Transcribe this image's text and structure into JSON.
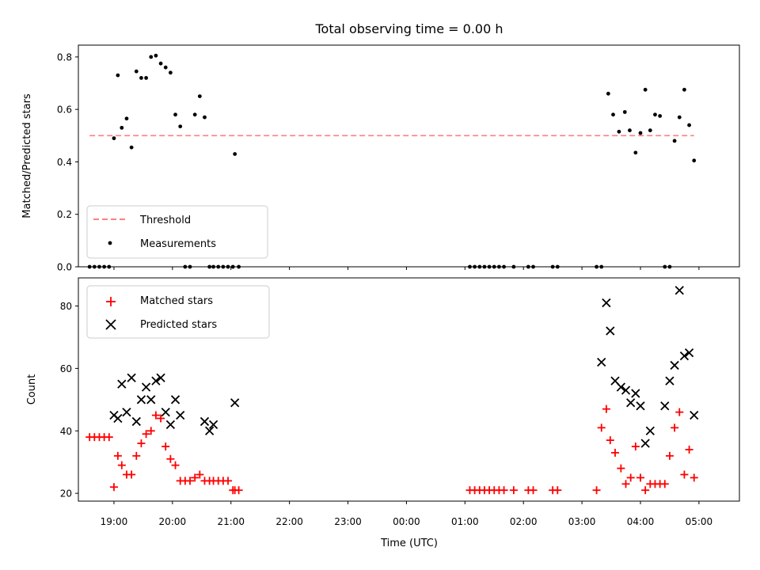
{
  "chart_data": [
    {
      "type": "scatter",
      "title": "Total observing time = 0.00 h",
      "xlabel": "",
      "ylabel": "Matched/Predicted stars",
      "ylim": [
        0,
        0.845
      ],
      "yticks": [
        "0.0",
        "0.2",
        "0.4",
        "0.6",
        "0.8"
      ],
      "ytick_values": [
        0,
        0.2,
        0.4,
        0.6,
        0.8
      ],
      "legend_position": "lower-left",
      "legend": [
        "Threshold",
        "Measurements"
      ],
      "threshold": {
        "name": "Threshold",
        "value": 0.5,
        "x_start": "18:35",
        "x_end": "04:55",
        "color": "#ff7f7f",
        "style": "dashed"
      },
      "series": [
        {
          "name": "Measurements",
          "marker": "dot",
          "color": "#000000",
          "x": [
            "18:35",
            "18:40",
            "18:45",
            "18:50",
            "18:55",
            "19:00",
            "19:04",
            "19:08",
            "19:13",
            "19:18",
            "19:23",
            "19:28",
            "19:33",
            "19:38",
            "19:43",
            "19:48",
            "19:53",
            "19:58",
            "20:03",
            "20:08",
            "20:13",
            "20:18",
            "20:23",
            "20:28",
            "20:33",
            "20:38",
            "20:42",
            "20:47",
            "20:52",
            "20:57",
            "21:02",
            "21:04",
            "21:08",
            "01:05",
            "01:10",
            "01:15",
            "01:20",
            "01:25",
            "01:30",
            "01:35",
            "01:40",
            "01:50",
            "02:05",
            "02:10",
            "02:30",
            "02:35",
            "03:15",
            "03:20",
            "03:27",
            "03:32",
            "03:38",
            "03:44",
            "03:49",
            "03:55",
            "04:00",
            "04:05",
            "04:10",
            "04:15",
            "04:20",
            "04:25",
            "04:30",
            "04:35",
            "04:40",
            "04:45",
            "04:50",
            "04:55"
          ],
          "y": [
            0,
            0,
            0,
            0,
            0,
            0.49,
            0.73,
            0.53,
            0.565,
            0.455,
            0.745,
            0.72,
            0.72,
            0.8,
            0.805,
            0.775,
            0.76,
            0.74,
            0.58,
            0.535,
            0,
            0,
            0.58,
            0.65,
            0.57,
            0,
            0,
            0,
            0,
            0,
            0,
            0.43,
            0,
            0,
            0,
            0,
            0,
            0,
            0,
            0,
            0,
            0,
            0,
            0,
            0,
            0,
            0,
            0,
            0.66,
            0.58,
            0.515,
            0.59,
            0.52,
            0.435,
            0.51,
            0.675,
            0.52,
            0.58,
            0.575,
            0,
            0,
            0.48,
            0.57,
            0.675,
            0.54,
            0.405
          ]
        }
      ]
    },
    {
      "type": "scatter",
      "title": "",
      "xlabel": "Time (UTC)",
      "ylabel": "Count",
      "ylim": [
        17.5,
        89
      ],
      "yticks": [
        "20",
        "40",
        "60",
        "80"
      ],
      "ytick_values": [
        20,
        40,
        60,
        80
      ],
      "xticks": [
        "19:00",
        "20:00",
        "21:00",
        "22:00",
        "23:00",
        "00:00",
        "01:00",
        "02:00",
        "03:00",
        "04:00",
        "05:00"
      ],
      "legend_position": "upper-left",
      "legend": [
        "Matched stars",
        "Predicted stars"
      ],
      "series": [
        {
          "name": "Matched stars",
          "marker": "plus",
          "color": "#ff0000",
          "x": [
            "18:35",
            "18:40",
            "18:45",
            "18:50",
            "18:55",
            "19:00",
            "19:04",
            "19:08",
            "19:13",
            "19:18",
            "19:23",
            "19:28",
            "19:33",
            "19:38",
            "19:43",
            "19:48",
            "19:53",
            "19:58",
            "20:03",
            "20:08",
            "20:13",
            "20:18",
            "20:23",
            "20:28",
            "20:33",
            "20:38",
            "20:42",
            "20:47",
            "20:52",
            "20:57",
            "21:02",
            "21:04",
            "21:08",
            "01:05",
            "01:10",
            "01:15",
            "01:20",
            "01:25",
            "01:30",
            "01:35",
            "01:40",
            "01:50",
            "02:05",
            "02:10",
            "02:30",
            "02:35",
            "03:15",
            "03:20",
            "03:25",
            "03:29",
            "03:34",
            "03:40",
            "03:45",
            "03:50",
            "03:55",
            "04:00",
            "04:05",
            "04:10",
            "04:15",
            "04:20",
            "04:25",
            "04:30",
            "04:35",
            "04:40",
            "04:45",
            "04:50",
            "04:55"
          ],
          "y": [
            38,
            38,
            38,
            38,
            38,
            22,
            32,
            29,
            26,
            26,
            32,
            36,
            39,
            40,
            45,
            44,
            35,
            31,
            29,
            24,
            24,
            24,
            25,
            26,
            24,
            24,
            24,
            24,
            24,
            24,
            21,
            21,
            21,
            21,
            21,
            21,
            21,
            21,
            21,
            21,
            21,
            21,
            21,
            21,
            21,
            21,
            21,
            41,
            47,
            37,
            33,
            28,
            23,
            25,
            35,
            25,
            21,
            23,
            23,
            23,
            23,
            32,
            41,
            46,
            26,
            34,
            25
          ]
        },
        {
          "name": "Predicted stars",
          "marker": "x",
          "color": "#000000",
          "x": [
            "19:00",
            "19:04",
            "19:08",
            "19:13",
            "19:18",
            "19:23",
            "19:28",
            "19:33",
            "19:38",
            "19:43",
            "19:48",
            "19:53",
            "19:58",
            "20:03",
            "20:08",
            "20:33",
            "20:38",
            "20:42",
            "21:04",
            "03:20",
            "03:25",
            "03:29",
            "03:34",
            "03:40",
            "03:45",
            "03:50",
            "03:55",
            "04:00",
            "04:05",
            "04:10",
            "04:25",
            "04:30",
            "04:35",
            "04:40",
            "04:45",
            "04:50",
            "04:55"
          ],
          "y": [
            45,
            44,
            55,
            46,
            57,
            43,
            50,
            54,
            50,
            56,
            57,
            46,
            42,
            50,
            45,
            43,
            40,
            42,
            49,
            62,
            81,
            72,
            56,
            54,
            53,
            49,
            52,
            48,
            36,
            40,
            48,
            56,
            61,
            85,
            64,
            65,
            45
          ]
        }
      ]
    }
  ],
  "colors": {
    "measurements": "#000000",
    "threshold": "#ff7f7f",
    "matched": "#ff0000",
    "predicted": "#000000"
  }
}
